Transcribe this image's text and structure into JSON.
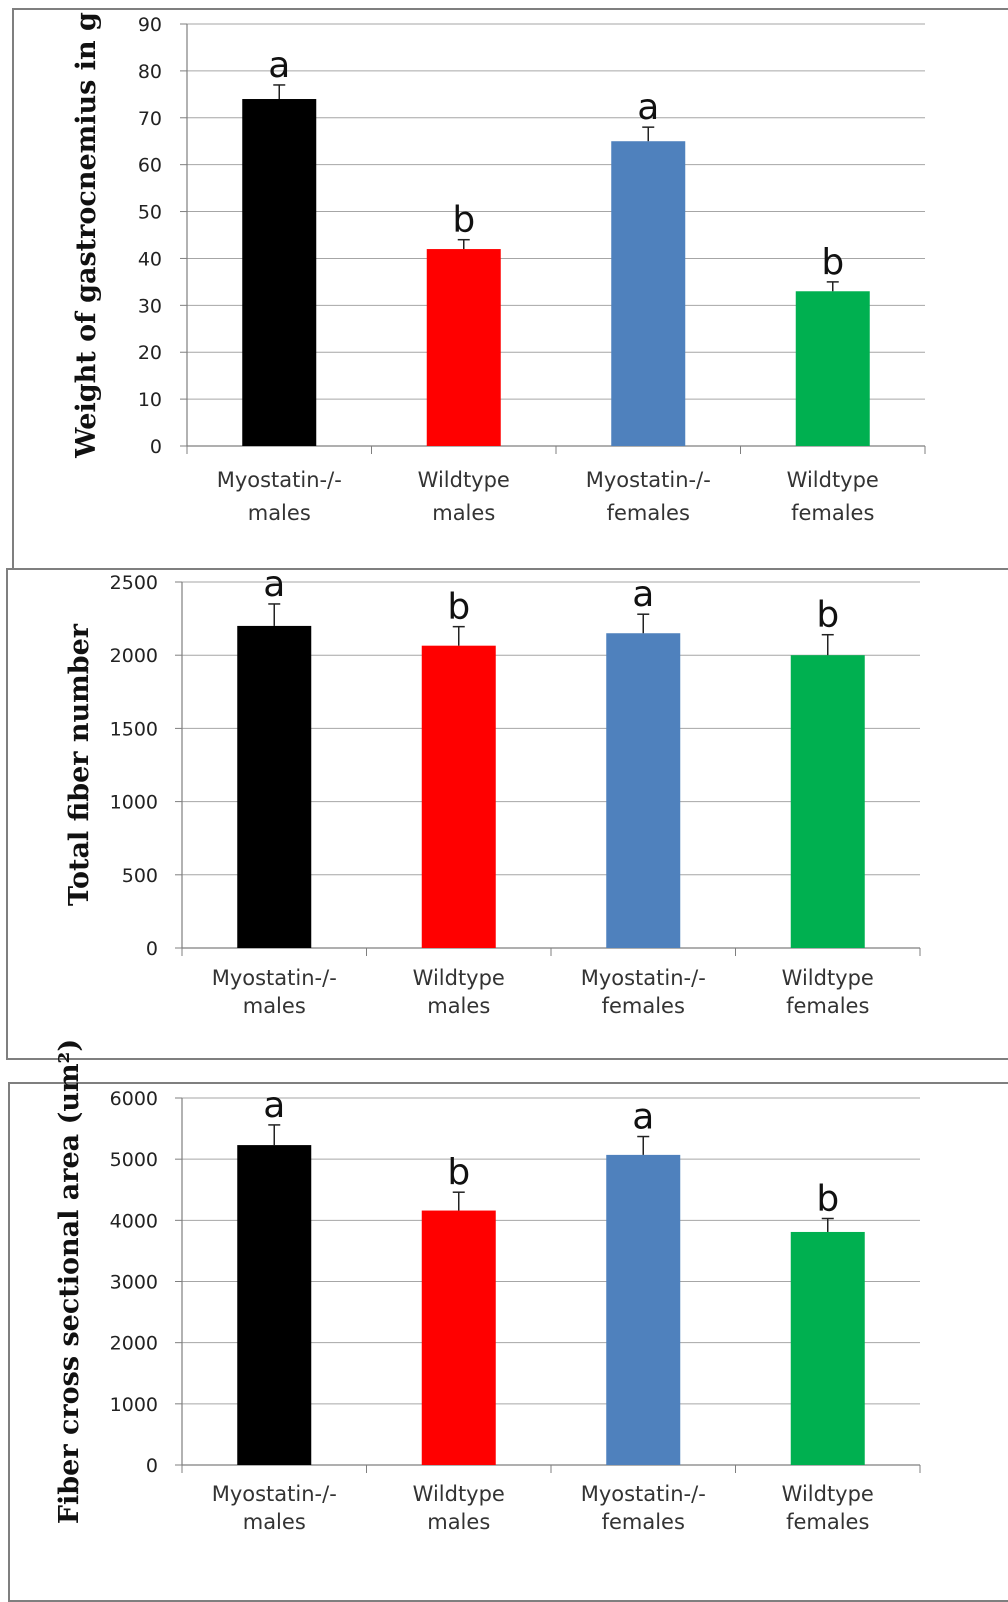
{
  "colors": {
    "myostatin_males": "#000000",
    "wildtype_males": "#ff0000",
    "myostatin_females": "#4f81bd",
    "wildtype_females": "#00b050",
    "grid": "#a6a6a6",
    "axis": "#7f7f7f"
  },
  "chart_data": [
    {
      "type": "bar",
      "ylabel": "Weight of gastrocnemius in g",
      "ylim": [
        0,
        90
      ],
      "yticks": [
        0,
        10,
        20,
        30,
        40,
        50,
        60,
        70,
        80,
        90
      ],
      "grid": true,
      "categories": [
        {
          "line1": "Myostatin-/-",
          "line2": "males"
        },
        {
          "line1": "Wildtype",
          "line2": "males"
        },
        {
          "line1": "Myostatin-/-",
          "line2": "females"
        },
        {
          "line1": "Wildtype",
          "line2": "females"
        }
      ],
      "values": [
        74,
        42,
        65,
        33
      ],
      "errors": [
        3,
        2,
        3,
        2
      ],
      "significance": [
        "a",
        "b",
        "a",
        "b"
      ]
    },
    {
      "type": "bar",
      "ylabel": "Total fiber number",
      "ylim": [
        0,
        2500
      ],
      "yticks": [
        0,
        500,
        1000,
        1500,
        2000,
        2500
      ],
      "grid": true,
      "categories": [
        {
          "line1": "Myostatin-/-",
          "line2": "males"
        },
        {
          "line1": "Wildtype",
          "line2": "males"
        },
        {
          "line1": "Myostatin-/-",
          "line2": "females"
        },
        {
          "line1": "Wildtype",
          "line2": "females"
        }
      ],
      "values": [
        2200,
        2065,
        2150,
        2000
      ],
      "errors": [
        150,
        130,
        130,
        140
      ],
      "significance": [
        "a",
        "b",
        "a",
        "b"
      ]
    },
    {
      "type": "bar",
      "ylabel": "Fiber cross sectional area (um²)",
      "ylim": [
        0,
        6000
      ],
      "yticks": [
        0,
        1000,
        2000,
        3000,
        4000,
        5000,
        6000
      ],
      "grid": true,
      "categories": [
        {
          "line1": "Myostatin-/-",
          "line2": "males"
        },
        {
          "line1": "Wildtype",
          "line2": "males"
        },
        {
          "line1": "Myostatin-/-",
          "line2": "females"
        },
        {
          "line1": "Wildtype",
          "line2": "females"
        }
      ],
      "values": [
        5230,
        4160,
        5070,
        3810
      ],
      "errors": [
        330,
        300,
        300,
        220
      ],
      "significance": [
        "a",
        "b",
        "a",
        "b"
      ]
    }
  ]
}
